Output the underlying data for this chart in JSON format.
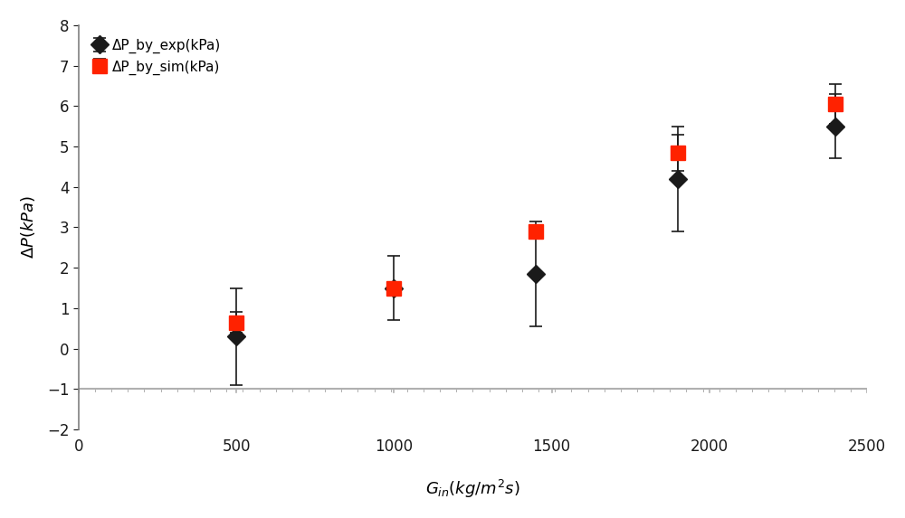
{
  "x": [
    500,
    1000,
    1450,
    1900,
    2400
  ],
  "exp_y": [
    0.3,
    1.5,
    1.85,
    4.2,
    5.5
  ],
  "exp_yerr": [
    1.2,
    0.8,
    1.3,
    1.3,
    0.8
  ],
  "sim_y": [
    0.65,
    1.5,
    2.9,
    4.85,
    6.05
  ],
  "sim_yerr": [
    0.25,
    0.15,
    0.15,
    0.45,
    0.5
  ],
  "exp_label": "ΔP_by_exp(kPa)",
  "sim_label": "ΔP_by_sim(kPa)",
  "xlim": [
    0,
    2500
  ],
  "ylim": [
    -2,
    8
  ],
  "yticks": [
    -2,
    -1,
    0,
    1,
    2,
    3,
    4,
    5,
    6,
    7,
    8
  ],
  "xticks": [
    0,
    500,
    1000,
    1500,
    2000,
    2500
  ],
  "exp_color": "#1a1a1a",
  "sim_color": "#ff2200",
  "background_color": "#ffffff",
  "hline_y": -1,
  "hline_color": "#b0b0b0",
  "spine_color": "#808080",
  "tick_label_size": 12,
  "label_fontsize": 13
}
